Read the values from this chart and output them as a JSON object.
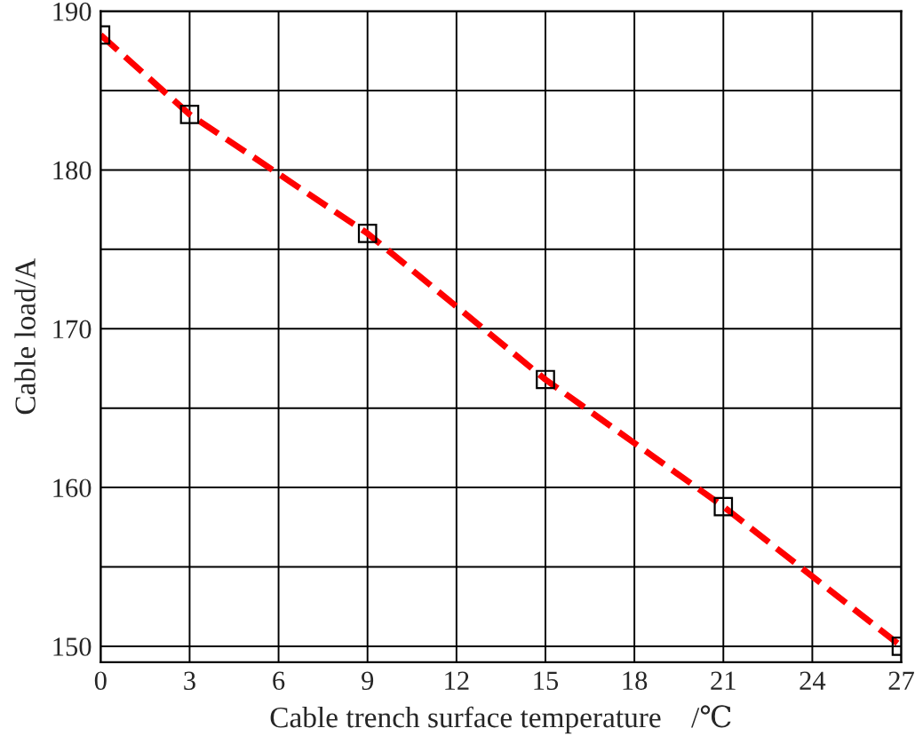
{
  "chart_data": {
    "type": "line",
    "xlabel": "Cable trench surface temperature    /℃",
    "ylabel": "Cable load/A",
    "x": [
      0,
      3,
      9,
      15,
      21,
      27
    ],
    "series": [
      {
        "color": "#ff0000",
        "values": [
          188.5,
          183.5,
          176,
          166.8,
          158.8,
          150
        ]
      }
    ],
    "xlim": [
      0,
      27
    ],
    "xticks": [
      0,
      3,
      6,
      9,
      12,
      15,
      18,
      21,
      24,
      27
    ],
    "ylim": [
      149,
      190
    ],
    "yticks": [
      150,
      {
        "value": 155,
        "label": null
      },
      160,
      {
        "value": 165,
        "label": null
      },
      170,
      {
        "value": 175,
        "label": null
      },
      180,
      {
        "value": 185,
        "label": null
      },
      190
    ],
    "grid": true,
    "marker": "square",
    "line_style": "dashed"
  }
}
